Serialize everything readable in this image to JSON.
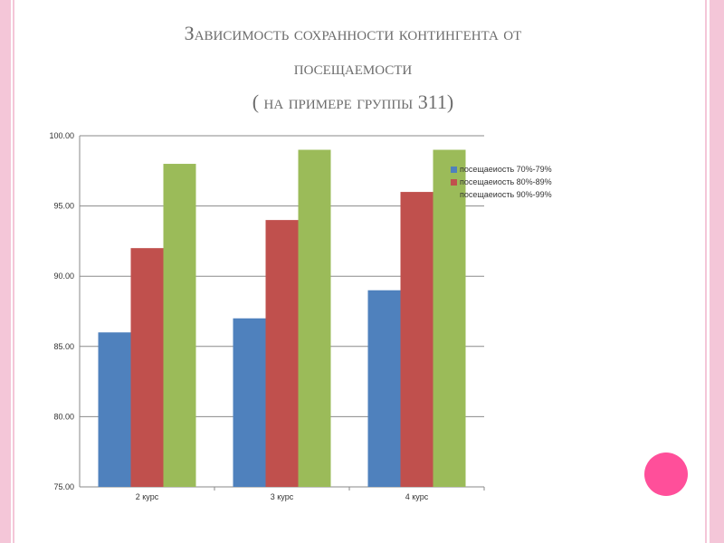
{
  "title": {
    "line1": "Зависимость сохранности контингента от",
    "line2": "посещаемости",
    "line3": "( на примере группы 311)"
  },
  "chart_data": {
    "type": "bar",
    "categories": [
      "2 курс",
      "3 курс",
      "4 курс"
    ],
    "series": [
      {
        "name": "посещаеиость 70%-79%",
        "color": "#4f81bd",
        "values": [
          86,
          87,
          89
        ]
      },
      {
        "name": "посещаеиость 80%-89%",
        "color": "#c0504d",
        "values": [
          92,
          94,
          96
        ]
      },
      {
        "name": "посещаеиость 90%-99%",
        "color": "#9bbb59",
        "values": [
          98,
          99,
          99
        ]
      }
    ],
    "ylim": [
      75,
      100
    ],
    "yticks": [
      75,
      80,
      85,
      90,
      95,
      100
    ],
    "ytick_labels": [
      "75.00",
      "80.00",
      "85.00",
      "90.00",
      "95.00",
      "100.00"
    ],
    "grid": true,
    "legend": "right"
  },
  "decor": {
    "accent": "#ff4f9a",
    "border": "#f4c6d8"
  }
}
